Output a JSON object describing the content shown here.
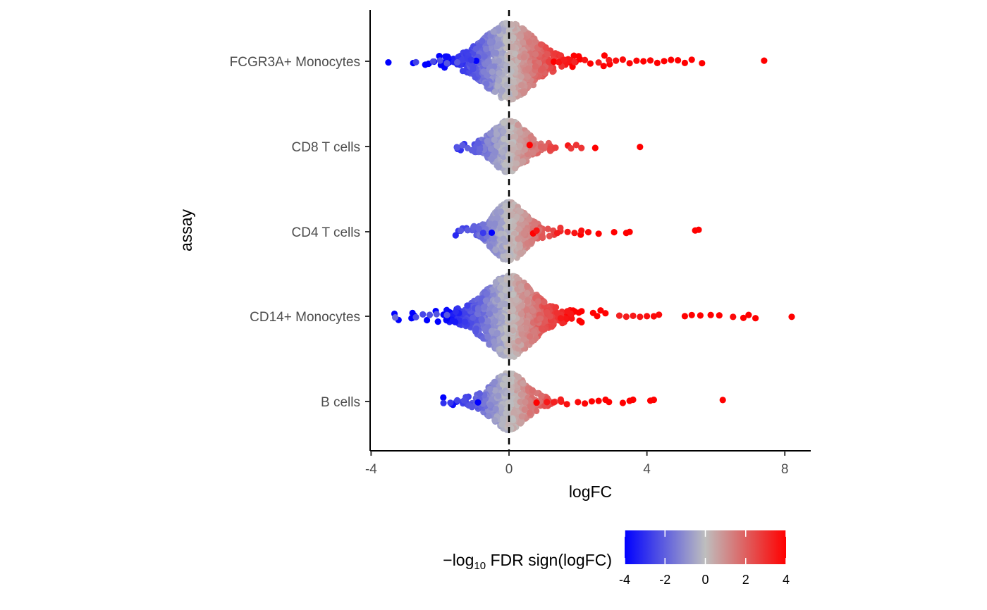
{
  "chart_data": {
    "type": "scatter",
    "subtype": "beeswarm",
    "xlabel": "logFC",
    "ylabel": "assay",
    "xlim": [
      -4.1,
      8.8
    ],
    "xticks": [
      -4,
      0,
      4,
      8
    ],
    "xtick_labels": [
      "-4",
      "0",
      "4",
      "8"
    ],
    "reference_line": {
      "x": 0,
      "style": "dashed"
    },
    "grid": false,
    "categories": [
      "FCGR3A+ Monocytes",
      "CD8 T cells",
      "CD4 T cells",
      "CD14+ Monocytes",
      "B cells"
    ],
    "color_scale": {
      "title": "−log₁₀ FDR sign(logFC)",
      "title_parts": {
        "prefix": "−log",
        "subscript": "10",
        "suffix": " FDR sign(logFC)"
      },
      "range": [
        -4,
        4
      ],
      "ticks": [
        -4,
        -2,
        0,
        2,
        4
      ],
      "tick_labels": [
        "-4",
        "-2",
        "0",
        "2",
        "4"
      ],
      "low_color": "#0000ff",
      "mid_color": "#bebebe",
      "high_color": "#ff0000",
      "legend_position": "bottom"
    },
    "series": [
      {
        "category": "FCGR3A+ Monocytes",
        "n": 1050,
        "spread": 0.65,
        "width": 0.88,
        "points": [
          {
            "x": -3.5,
            "c": -4
          },
          {
            "x": -2.7,
            "c": -2.6
          },
          {
            "x": -2.2,
            "c": -2.4
          },
          {
            "x": -2.0,
            "c": -2.3
          },
          {
            "x": -1.8,
            "c": -2.2
          },
          {
            "x": -1.5,
            "c": -2.1
          },
          {
            "x": -0.95,
            "c": -4
          },
          {
            "x": -1.1,
            "c": -2.8
          },
          {
            "x": 1.3,
            "c": 4
          },
          {
            "x": 1.45,
            "c": 3.6
          },
          {
            "x": 1.6,
            "c": 3.4
          },
          {
            "x": 1.9,
            "c": 3.2
          },
          {
            "x": 2.2,
            "c": 3.6
          },
          {
            "x": 2.6,
            "c": 3.4
          },
          {
            "x": 2.9,
            "c": 3.5
          },
          {
            "x": 3.1,
            "c": 3.7
          },
          {
            "x": 3.3,
            "c": 3.8
          },
          {
            "x": 3.5,
            "c": 3.9
          },
          {
            "x": 3.7,
            "c": 3.9
          },
          {
            "x": 3.9,
            "c": 4
          },
          {
            "x": 4.1,
            "c": 3.9
          },
          {
            "x": 4.3,
            "c": 4
          },
          {
            "x": 4.5,
            "c": 4
          },
          {
            "x": 4.7,
            "c": 4
          },
          {
            "x": 4.9,
            "c": 4
          },
          {
            "x": 5.1,
            "c": 4
          },
          {
            "x": 5.3,
            "c": 4
          },
          {
            "x": 5.6,
            "c": 4
          },
          {
            "x": 7.4,
            "c": 4
          }
        ]
      },
      {
        "category": "CD8 T cells",
        "n": 520,
        "spread": 0.42,
        "width": 0.6,
        "points": [
          {
            "x": -1.5,
            "c": -2.2
          },
          {
            "x": -1.35,
            "c": -2.1
          },
          {
            "x": -1.2,
            "c": -2.0
          },
          {
            "x": 1.2,
            "c": 2.6
          },
          {
            "x": 1.35,
            "c": 2.7
          },
          {
            "x": 1.8,
            "c": 2.8
          },
          {
            "x": 1.95,
            "c": 2.9
          },
          {
            "x": 2.1,
            "c": 2.9
          },
          {
            "x": 2.5,
            "c": 4
          },
          {
            "x": 0.6,
            "c": 4
          },
          {
            "x": 3.8,
            "c": 4
          }
        ]
      },
      {
        "category": "CD4 T cells",
        "n": 560,
        "spread": 0.42,
        "width": 0.68,
        "points": [
          {
            "x": -1.4,
            "c": -2.2
          },
          {
            "x": -1.2,
            "c": -2.1
          },
          {
            "x": -0.5,
            "c": -4
          },
          {
            "x": -0.75,
            "c": -2.8
          },
          {
            "x": 0.7,
            "c": 4
          },
          {
            "x": 0.8,
            "c": 3.6
          },
          {
            "x": 1.4,
            "c": 3.4
          },
          {
            "x": 1.7,
            "c": 3.5
          },
          {
            "x": 1.9,
            "c": 3.6
          },
          {
            "x": 2.1,
            "c": 3.7
          },
          {
            "x": 2.3,
            "c": 3.8
          },
          {
            "x": 2.6,
            "c": 4
          },
          {
            "x": 3.05,
            "c": 4
          },
          {
            "x": 3.4,
            "c": 4
          },
          {
            "x": 3.5,
            "c": 4
          },
          {
            "x": 5.4,
            "c": 4
          },
          {
            "x": 5.5,
            "c": 4
          }
        ]
      },
      {
        "category": "CD14+ Monocytes",
        "n": 1250,
        "spread": 0.62,
        "width": 0.95,
        "points": [
          {
            "x": -3.3,
            "c": -1.8
          },
          {
            "x": -2.7,
            "c": -2.4
          },
          {
            "x": -2.5,
            "c": -2.5
          },
          {
            "x": -2.3,
            "c": -2.3
          },
          {
            "x": -2.1,
            "c": -2.2
          },
          {
            "x": -1.8,
            "c": -2.1
          },
          {
            "x": 3.2,
            "c": 3.3
          },
          {
            "x": 3.4,
            "c": 3.4
          },
          {
            "x": 3.6,
            "c": 3.5
          },
          {
            "x": 3.8,
            "c": 3.6
          },
          {
            "x": 4.0,
            "c": 3.7
          },
          {
            "x": 4.2,
            "c": 3.8
          },
          {
            "x": 4.35,
            "c": 3.8
          },
          {
            "x": 5.1,
            "c": 4
          },
          {
            "x": 5.3,
            "c": 4
          },
          {
            "x": 5.55,
            "c": 4
          },
          {
            "x": 5.85,
            "c": 4
          },
          {
            "x": 6.1,
            "c": 4
          },
          {
            "x": 6.5,
            "c": 3.8
          },
          {
            "x": 6.8,
            "c": 4
          },
          {
            "x": 6.95,
            "c": 4
          },
          {
            "x": 7.15,
            "c": 4
          },
          {
            "x": 8.2,
            "c": 4
          }
        ]
      },
      {
        "category": "B cells",
        "n": 640,
        "spread": 0.45,
        "width": 0.66,
        "points": [
          {
            "x": -1.9,
            "c": -3.0
          },
          {
            "x": -1.7,
            "c": -2.8
          },
          {
            "x": -1.5,
            "c": -2.6
          },
          {
            "x": -1.3,
            "c": -2.4
          },
          {
            "x": -0.9,
            "c": -4
          },
          {
            "x": 0.8,
            "c": 4
          },
          {
            "x": 1.1,
            "c": 3.5
          },
          {
            "x": 1.3,
            "c": 3.3
          },
          {
            "x": 1.5,
            "c": 3.4
          },
          {
            "x": 2.0,
            "c": 3.8
          },
          {
            "x": 2.2,
            "c": 3.9
          },
          {
            "x": 2.4,
            "c": 4
          },
          {
            "x": 2.6,
            "c": 4
          },
          {
            "x": 2.8,
            "c": 4
          },
          {
            "x": 2.9,
            "c": 4
          },
          {
            "x": 3.3,
            "c": 4
          },
          {
            "x": 3.5,
            "c": 4
          },
          {
            "x": 3.6,
            "c": 4
          },
          {
            "x": 4.1,
            "c": 4
          },
          {
            "x": 4.2,
            "c": 4
          },
          {
            "x": 6.2,
            "c": 4
          }
        ]
      }
    ]
  }
}
